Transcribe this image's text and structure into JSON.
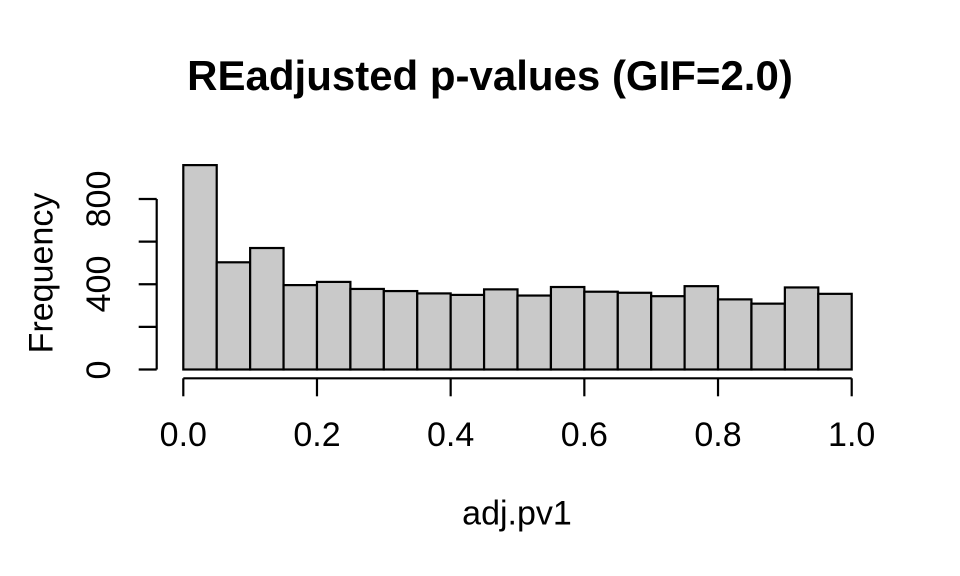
{
  "chart_data": {
    "type": "bar",
    "subtype": "histogram",
    "title": "REadjusted p-values (GIF=2.0)",
    "xlabel": "adj.pv1",
    "ylabel": "Frequency",
    "xlim": [
      0.0,
      1.0
    ],
    "ylim": [
      0,
      800
    ],
    "bin_start": 0.0,
    "bin_width": 0.05,
    "values": [
      959,
      503,
      570,
      396,
      411,
      378,
      368,
      357,
      350,
      376,
      347,
      387,
      365,
      360,
      344,
      391,
      329,
      309,
      385,
      355
    ],
    "x_ticks": [
      {
        "value": 0.0,
        "label": "0.0"
      },
      {
        "value": 0.2,
        "label": "0.2"
      },
      {
        "value": 0.4,
        "label": "0.4"
      },
      {
        "value": 0.6,
        "label": "0.6"
      },
      {
        "value": 0.8,
        "label": "0.8"
      },
      {
        "value": 1.0,
        "label": "1.0"
      }
    ],
    "y_ticks": [
      {
        "value": 0,
        "label": "0"
      },
      {
        "value": 200,
        "label": ""
      },
      {
        "value": 400,
        "label": "400"
      },
      {
        "value": 600,
        "label": ""
      },
      {
        "value": 800,
        "label": "800"
      }
    ],
    "grid": false,
    "legend": null,
    "colors": {
      "bar_fill": "#c9c9c9",
      "bar_stroke": "#000000",
      "axis": "#000000",
      "text": "#000000",
      "background": "#ffffff"
    }
  }
}
